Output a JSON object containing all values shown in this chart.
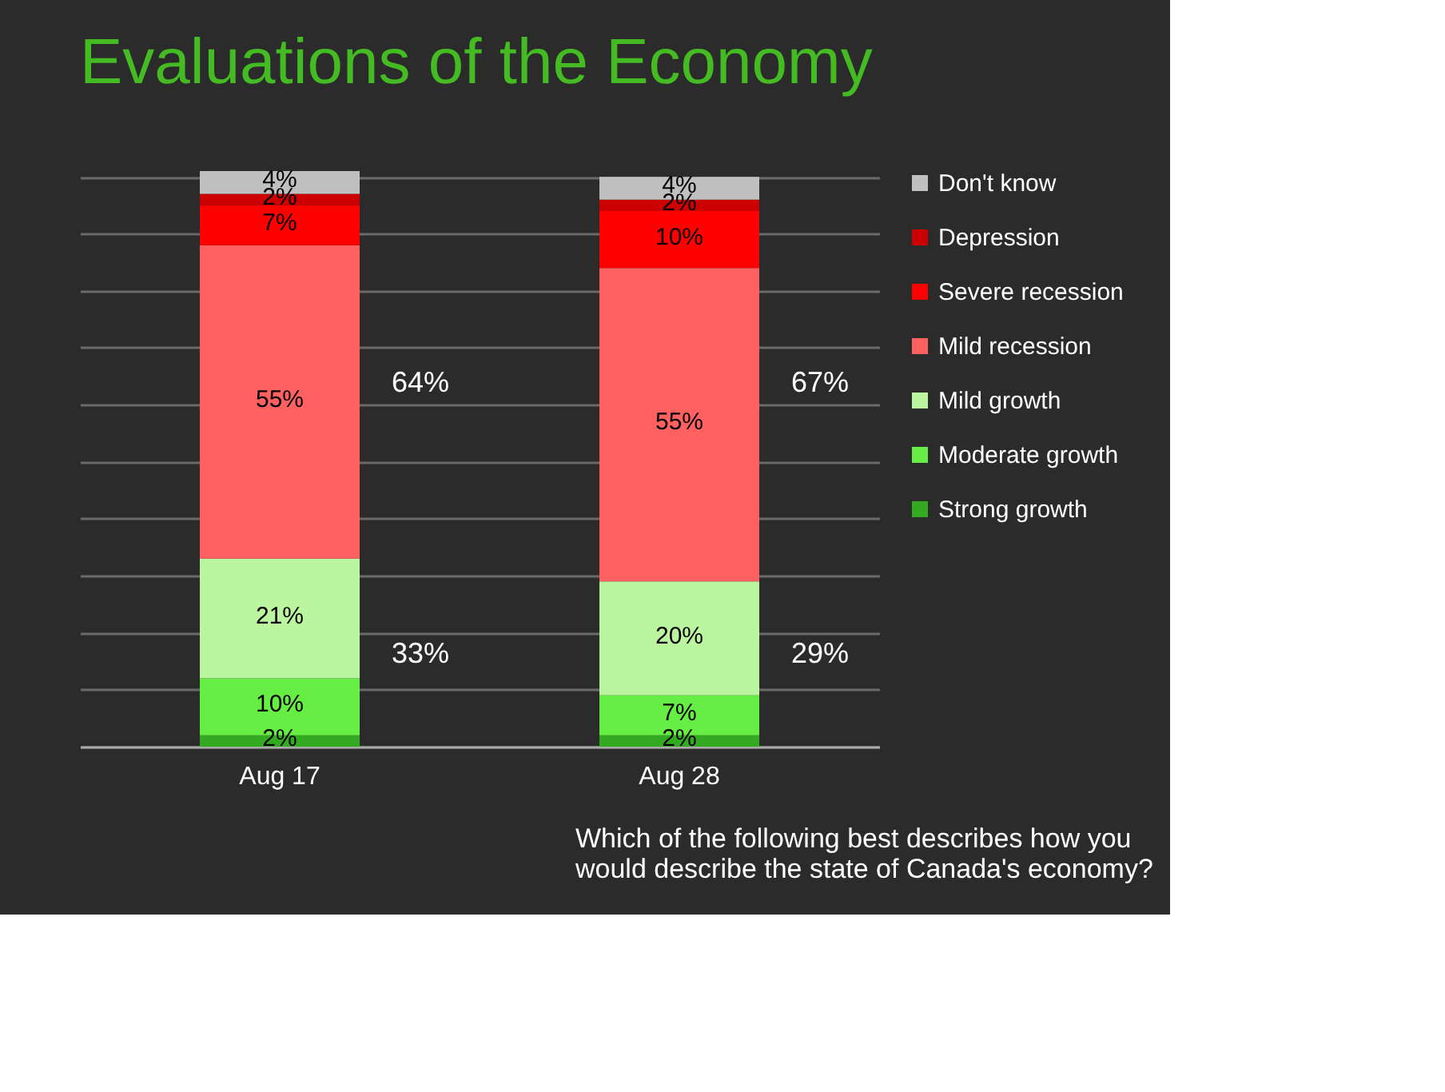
{
  "chart_data": {
    "type": "bar",
    "title": "Evaluations of the Economy",
    "categories": [
      "Aug 17",
      "Aug 28"
    ],
    "stacked": true,
    "legend": "right",
    "grid": "y",
    "tick_labels": "x",
    "series": [
      {
        "name": "Strong growth",
        "color": "#33aa22",
        "values": [
          2,
          2
        ],
        "value_labels": [
          "2%",
          "2%"
        ]
      },
      {
        "name": "Moderate growth",
        "color": "#66ee44",
        "values": [
          10,
          7
        ],
        "value_labels": [
          "10%",
          "7%"
        ]
      },
      {
        "name": "Mild growth",
        "color": "#bbf5a0",
        "values": [
          21,
          20
        ],
        "value_labels": [
          "21%",
          "20%"
        ]
      },
      {
        "name": "Mild recession",
        "color": "#ff6060",
        "values": [
          55,
          55
        ],
        "value_labels": [
          "55%",
          "55%"
        ]
      },
      {
        "name": "Severe recession",
        "color": "#ff0000",
        "values": [
          7,
          10
        ],
        "value_labels": [
          "7%",
          "10%"
        ]
      },
      {
        "name": "Depression",
        "color": "#cc0000",
        "values": [
          2,
          2
        ],
        "value_labels": [
          "2%",
          "2%"
        ]
      },
      {
        "name": "Don't know",
        "color": "#c0c0c0",
        "values": [
          4,
          4
        ],
        "value_labels": [
          "4%",
          "4%"
        ]
      }
    ],
    "annotations": [
      "64%",
      "33%",
      "67%",
      "29%",
      "Which of the following best describes how you would describe the state of Canada's economy?"
    ]
  }
}
